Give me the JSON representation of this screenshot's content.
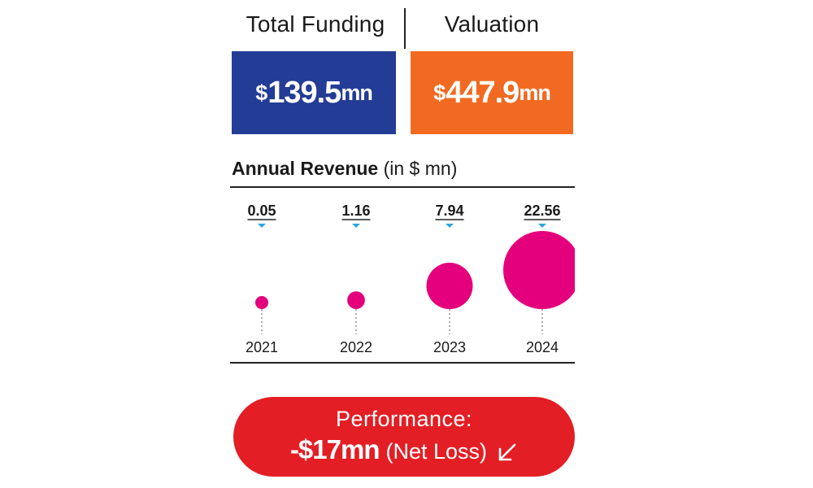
{
  "header": {
    "funding_label": "Total Funding",
    "valuation_label": "Valuation"
  },
  "funding": {
    "currency": "$",
    "amount": "139.5",
    "unit": "mn",
    "color": "#233c96"
  },
  "valuation": {
    "currency": "$",
    "amount": "447.9",
    "unit": "mn",
    "color": "#f26a21"
  },
  "revenue": {
    "title_bold": "Annual Revenue",
    "title_unit": "(in $ mn)"
  },
  "chart_data": {
    "type": "bubble",
    "title": "Annual Revenue (in $ mn)",
    "categories": [
      "2021",
      "2022",
      "2023",
      "2024"
    ],
    "values": [
      0.05,
      1.16,
      7.94,
      22.56
    ],
    "value_labels": [
      "0.05",
      "1.16",
      "7.94",
      "22.56"
    ],
    "bubble_color": "#e4007c",
    "marker_color": "#2aa7df"
  },
  "performance": {
    "label": "Performance:",
    "value": "-$17mn",
    "note": "(Net Loss)",
    "icon": "arrow-down-left-icon",
    "color": "#e31e24"
  }
}
